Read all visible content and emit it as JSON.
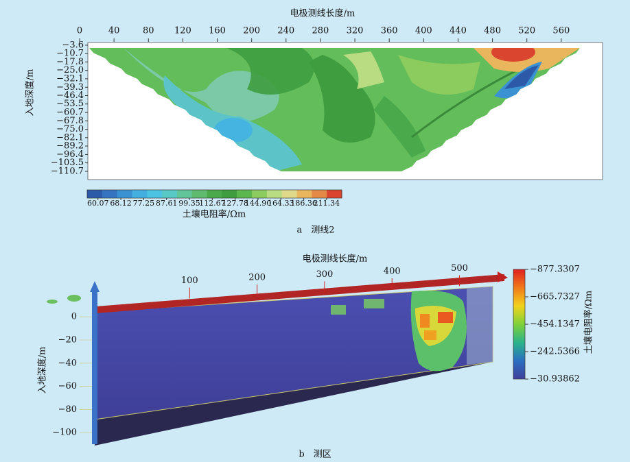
{
  "chart_data": [
    {
      "type": "heatmap",
      "x_label": "电极测线长度/m",
      "y_label": "入地深度/m",
      "xlim": [
        0,
        608
      ],
      "xticks": [
        0,
        40,
        80,
        120,
        160,
        200,
        240,
        280,
        320,
        360,
        400,
        440,
        480,
        520,
        560
      ],
      "ylim": [
        -117.7,
        -1.3
      ],
      "yticks": [
        {
          "value": -3.6,
          "label": "−3.6"
        },
        {
          "value": -10.7,
          "label": "−10.7"
        },
        {
          "value": -17.8,
          "label": "−17.8"
        },
        {
          "value": -25.0,
          "label": "−25.0"
        },
        {
          "value": -32.1,
          "label": "−32.1"
        },
        {
          "value": -39.3,
          "label": "−39.3"
        },
        {
          "value": -46.4,
          "label": "−46.4"
        },
        {
          "value": -53.5,
          "label": "−53.5"
        },
        {
          "value": -60.7,
          "label": "−60.7"
        },
        {
          "value": -67.8,
          "label": "−67.8"
        },
        {
          "value": -75.0,
          "label": "−75.0"
        },
        {
          "value": -82.1,
          "label": "−82.1"
        },
        {
          "value": -89.2,
          "label": "−89.2"
        },
        {
          "value": -96.4,
          "label": "−96.4"
        },
        {
          "value": -103.5,
          "label": "−103.5"
        },
        {
          "value": -110.7,
          "label": "−110.7"
        }
      ],
      "colorbar": {
        "label": "土壤电阻率/Ωm",
        "scale": "log",
        "lim": [
          56.6,
          229.7
        ],
        "ticks": [
          60.07,
          68.12,
          77.25,
          87.61,
          99.35,
          112.67,
          127.78,
          {
            "value": 144.9,
            "label": "144.90"
          },
          164.33,
          186.36,
          211.34
        ],
        "colors": [
          "#2d5aa8",
          "#3474c0",
          "#3a92d2",
          "#43aee0",
          "#4cc3e2",
          "#58c9c4",
          "#62c59a",
          "#5fbb6e",
          "#4aa94a",
          "#3f9d3f",
          "#5cb84e",
          "#8ccb5e",
          "#b9db82",
          "#e0d98a",
          "#e9b65e",
          "#e48a46",
          "#d9452f"
        ]
      },
      "caption": "a　测线2"
    },
    {
      "type": "volume",
      "x_label": "电极测线长度/m",
      "y_label": "入地深度/m",
      "xlim": [
        0,
        590
      ],
      "xticks": [
        100,
        200,
        300,
        400,
        500
      ],
      "ylim": [
        -110,
        25
      ],
      "yticks": [
        0,
        {
          "value": -20,
          "label": "−20"
        },
        {
          "value": -40,
          "label": "−40"
        },
        {
          "value": -60,
          "label": "−60"
        },
        {
          "value": -80,
          "label": "−80"
        },
        {
          "value": -100,
          "label": "−100"
        }
      ],
      "colorbar": {
        "label": "土壤电阻率/Ωm",
        "scale": "linear",
        "lim": [
          -877.3307,
          -30.93862
        ],
        "ticks": [
          {
            "value": -877.3307,
            "label": "−877.3307"
          },
          {
            "value": -665.7327,
            "label": "−665.7327"
          },
          {
            "value": -454.1347,
            "label": "−454.1347"
          },
          {
            "value": -242.5366,
            "label": "−242.5366"
          },
          {
            "value": -30.93862,
            "label": "−30.93862"
          }
        ],
        "colors": [
          "#e02020",
          "#f07a1a",
          "#f2d21c",
          "#7ed13a",
          "#2bb38a",
          "#2a6fc0",
          "#3f3f9a"
        ]
      },
      "caption": "b　测区"
    }
  ]
}
